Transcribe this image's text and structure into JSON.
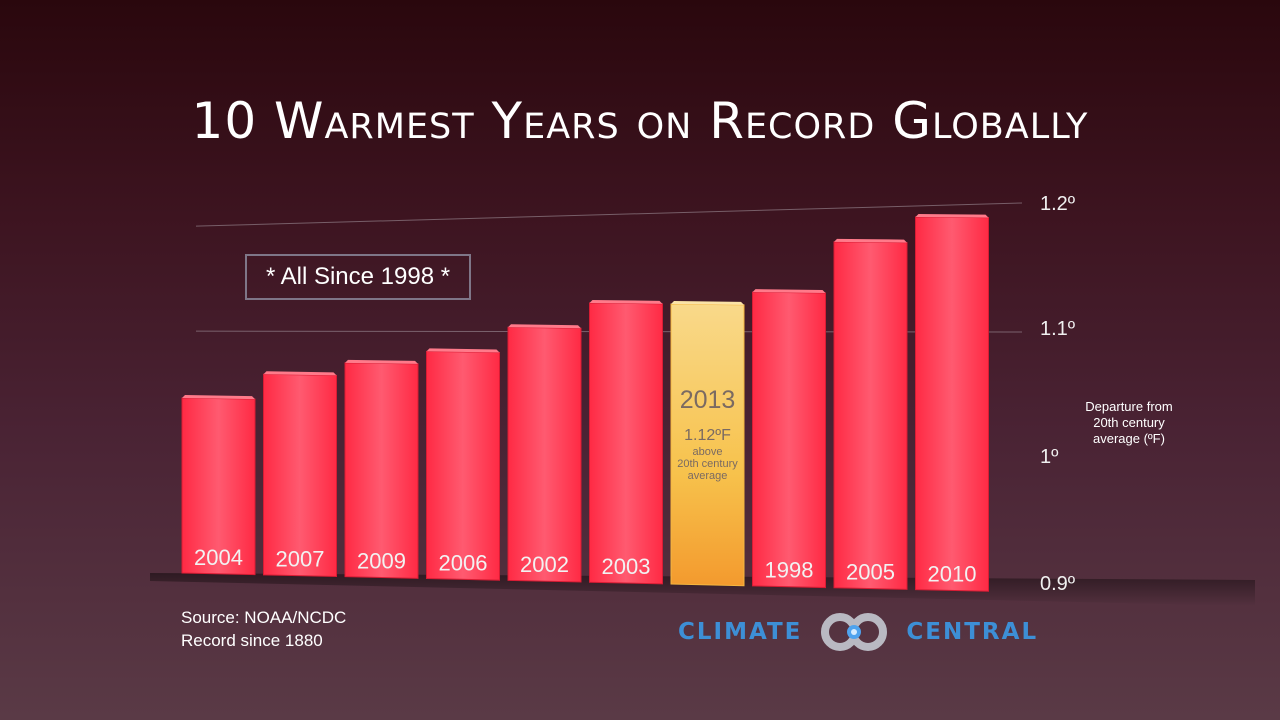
{
  "chart_data": {
    "type": "bar",
    "title": "10 Warmest Years on Record Globally",
    "categories": [
      "2004",
      "2007",
      "2009",
      "2006",
      "2002",
      "2003",
      "2013",
      "1998",
      "2005",
      "2010"
    ],
    "values": [
      1.04,
      1.06,
      1.07,
      1.08,
      1.1,
      1.12,
      1.12,
      1.13,
      1.17,
      1.19
    ],
    "ylim": [
      0.9,
      1.2
    ],
    "yticks": [
      "0.9º",
      "1º",
      "1.1º",
      "1.2º"
    ],
    "ytick_values": [
      0.9,
      1.0,
      1.1,
      1.2
    ],
    "ylabel": "Departure from 20th century average (ºF)",
    "highlight": {
      "category": "2013",
      "value_label": "1.12ºF",
      "note_line1": "above",
      "note_line2": "20th century",
      "note_line3": "average"
    },
    "grid": true,
    "bar_color": "#ff2a44",
    "highlight_color": "#f7c24c"
  },
  "badge": "* All Since 1998 *",
  "yaxis_title": {
    "line1": "Departure from",
    "line2": "20th century",
    "line3": "average (ºF)"
  },
  "source": {
    "line1": "Source: NOAA/NCDC",
    "line2": "Record since 1880"
  },
  "logo": {
    "left": "CLIMATE",
    "right": "CENTRAL",
    "mark_icon": "double-ring-logo-icon",
    "color": "#3d8fd6"
  }
}
